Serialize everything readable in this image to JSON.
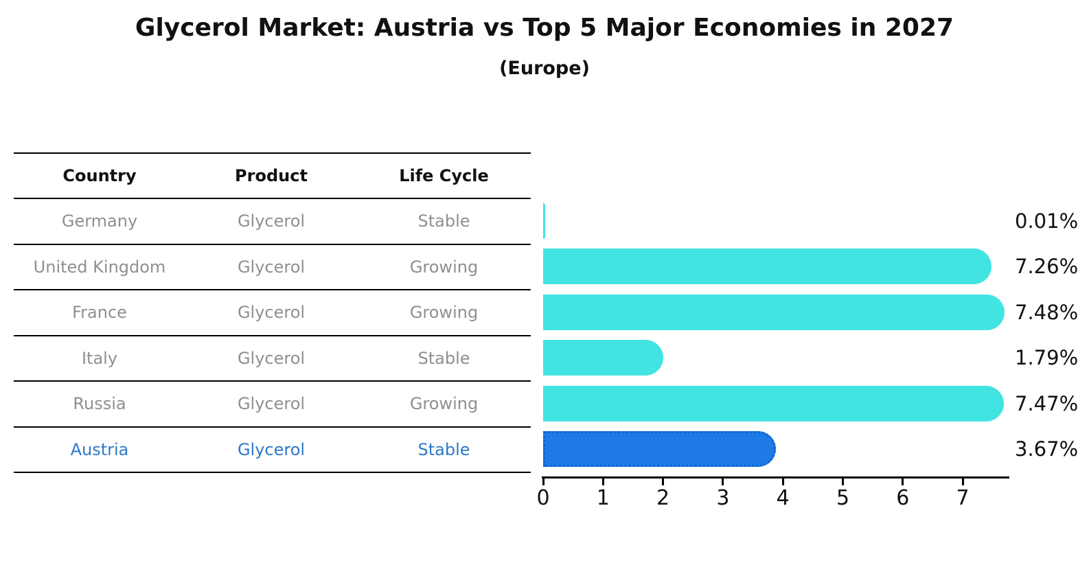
{
  "title": "Glycerol Market: Austria vs Top 5 Major Economies in 2027",
  "subtitle": "(Europe)",
  "table": {
    "headers": {
      "country": "Country",
      "product": "Product",
      "life_cycle": "Life Cycle"
    },
    "rows": [
      {
        "country": "Germany",
        "product": "Glycerol",
        "life_cycle": "Stable"
      },
      {
        "country": "United Kingdom",
        "product": "Glycerol",
        "life_cycle": "Growing"
      },
      {
        "country": "France",
        "product": "Glycerol",
        "life_cycle": "Growing"
      },
      {
        "country": "Italy",
        "product": "Glycerol",
        "life_cycle": "Stable"
      },
      {
        "country": "Russia",
        "product": "Glycerol",
        "life_cycle": "Growing"
      },
      {
        "country": "Austria",
        "product": "Glycerol",
        "life_cycle": "Stable"
      }
    ],
    "highlight_row": "Austria"
  },
  "chart_data": {
    "type": "bar",
    "orientation": "horizontal",
    "title": "Glycerol Market: Austria vs Top 5 Major Economies in 2027",
    "subtitle": "(Europe)",
    "categories": [
      "Germany",
      "United Kingdom",
      "France",
      "Italy",
      "Russia",
      "Austria"
    ],
    "values": [
      0.01,
      7.26,
      7.48,
      1.79,
      7.47,
      3.67
    ],
    "value_labels": [
      "0.01%",
      "7.26%",
      "7.48%",
      "1.79%",
      "7.47%",
      "3.67%"
    ],
    "xlim": [
      0,
      7.8
    ],
    "x_ticks": [
      0,
      1,
      2,
      3,
      4,
      5,
      6,
      7
    ],
    "grid": false,
    "legend": false,
    "highlight_index": 5,
    "colors": {
      "bar": "#42E4E1",
      "highlight_bar": "#1E7BE5",
      "highlight_bar_border": "#0E62D2",
      "highlight_text": "#2E78C8",
      "row_text": "#8f8f8f",
      "axis": "#000000"
    }
  }
}
